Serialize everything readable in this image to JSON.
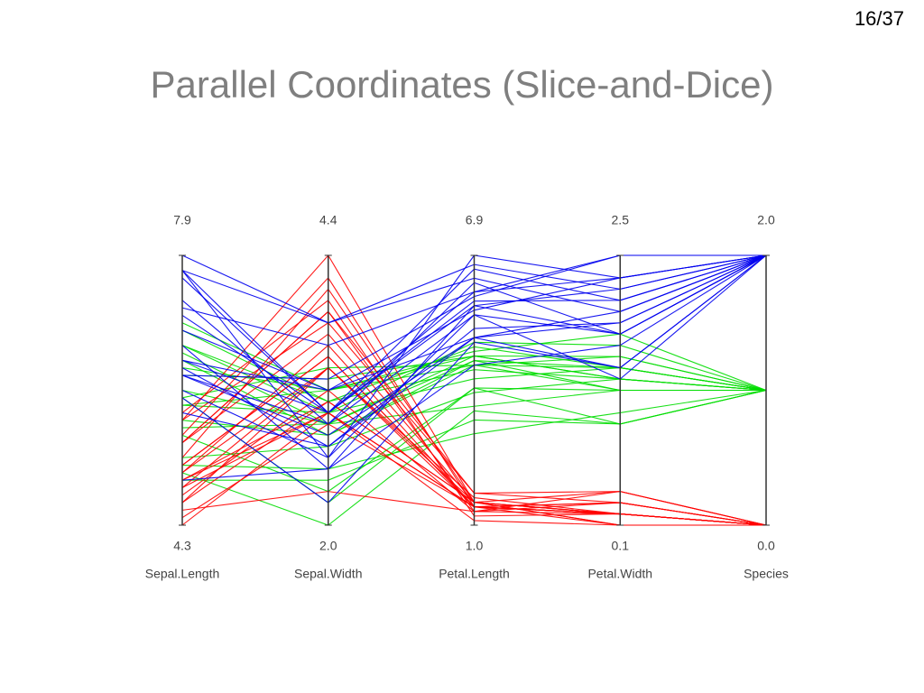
{
  "page": {
    "number": "16/37",
    "title": "Parallel Coordinates (Slice-and-Dice)"
  },
  "chart_data": {
    "type": "parallel",
    "axes": [
      {
        "label": "Sepal.Length",
        "ylim": [
          4.3,
          7.9
        ],
        "yticks": [
          4.3,
          7.9
        ]
      },
      {
        "label": "Sepal.Width",
        "ylim": [
          2,
          4.4
        ],
        "yticks": [
          {
            "value": 2,
            "label": "2.0"
          },
          4.4
        ]
      },
      {
        "label": "Petal.Length",
        "ylim": [
          1,
          6.9
        ],
        "yticks": [
          {
            "value": 1,
            "label": "1.0"
          },
          6.9
        ]
      },
      {
        "label": "Petal.Width",
        "ylim": [
          0.1,
          2.5
        ],
        "yticks": [
          0.1,
          2.5
        ]
      },
      {
        "label": "Species",
        "ylim": [
          0,
          2
        ],
        "yticks": [
          {
            "value": 0,
            "label": "0.0"
          },
          {
            "value": 2,
            "label": "2.0"
          }
        ]
      }
    ],
    "series": [
      {
        "color": "#00dd00",
        "values": [
          [
            7.0,
            3.2,
            4.7,
            1.4,
            1
          ],
          [
            6.4,
            3.2,
            4.5,
            1.5,
            1
          ],
          [
            6.9,
            3.1,
            4.9,
            1.5,
            1
          ],
          [
            5.5,
            2.3,
            4.0,
            1.3,
            1
          ],
          [
            6.5,
            2.8,
            4.6,
            1.5,
            1
          ],
          [
            5.7,
            2.8,
            4.5,
            1.3,
            1
          ],
          [
            6.3,
            3.3,
            4.7,
            1.6,
            1
          ],
          [
            4.9,
            2.4,
            3.3,
            1.0,
            1
          ],
          [
            6.6,
            2.9,
            4.6,
            1.3,
            1
          ],
          [
            5.2,
            2.7,
            3.9,
            1.4,
            1
          ],
          [
            5.0,
            2.0,
            3.5,
            1.0,
            1
          ],
          [
            5.9,
            3.0,
            4.2,
            1.5,
            1
          ],
          [
            6.0,
            2.2,
            4.0,
            1.0,
            1
          ],
          [
            6.1,
            2.9,
            4.7,
            1.4,
            1
          ],
          [
            5.6,
            2.9,
            3.6,
            1.3,
            1
          ],
          [
            6.7,
            3.1,
            4.4,
            1.4,
            1
          ],
          [
            5.9,
            3.2,
            4.8,
            1.8,
            1
          ],
          [
            6.7,
            3.0,
            5.0,
            1.7,
            1
          ],
          [
            5.1,
            2.5,
            3.0,
            1.1,
            1
          ],
          [
            6.0,
            3.4,
            4.5,
            1.6,
            1
          ]
        ]
      },
      {
        "color": "#ff0000",
        "values": [
          [
            5.1,
            3.5,
            1.4,
            0.2,
            0
          ],
          [
            4.9,
            3.0,
            1.4,
            0.2,
            0
          ],
          [
            4.7,
            3.2,
            1.3,
            0.2,
            0
          ],
          [
            4.6,
            3.1,
            1.5,
            0.2,
            0
          ],
          [
            5.0,
            3.6,
            1.4,
            0.2,
            0
          ],
          [
            5.4,
            3.9,
            1.7,
            0.4,
            0
          ],
          [
            4.6,
            3.4,
            1.4,
            0.3,
            0
          ],
          [
            5.0,
            3.4,
            1.5,
            0.2,
            0
          ],
          [
            4.4,
            2.9,
            1.4,
            0.2,
            0
          ],
          [
            4.9,
            3.1,
            1.5,
            0.1,
            0
          ],
          [
            5.4,
            3.7,
            1.5,
            0.2,
            0
          ],
          [
            4.8,
            3.4,
            1.6,
            0.2,
            0
          ],
          [
            4.8,
            3.0,
            1.4,
            0.1,
            0
          ],
          [
            4.3,
            3.0,
            1.1,
            0.1,
            0
          ],
          [
            5.8,
            4.0,
            1.2,
            0.2,
            0
          ],
          [
            5.7,
            4.4,
            1.5,
            0.4,
            0
          ],
          [
            5.4,
            3.9,
            1.3,
            0.4,
            0
          ],
          [
            5.1,
            3.5,
            1.4,
            0.3,
            0
          ],
          [
            5.7,
            3.8,
            1.7,
            0.3,
            0
          ],
          [
            4.5,
            2.3,
            1.3,
            0.3,
            0
          ],
          [
            5.2,
            4.1,
            1.5,
            0.1,
            0
          ],
          [
            5.5,
            4.2,
            1.4,
            0.2,
            0
          ]
        ]
      },
      {
        "color": "#0000ee",
        "values": [
          [
            6.3,
            3.3,
            6.0,
            2.5,
            2
          ],
          [
            5.8,
            2.7,
            5.1,
            1.9,
            2
          ],
          [
            7.1,
            3.0,
            5.9,
            2.1,
            2
          ],
          [
            6.3,
            2.9,
            5.6,
            1.8,
            2
          ],
          [
            6.5,
            3.0,
            5.8,
            2.2,
            2
          ],
          [
            7.6,
            3.0,
            6.6,
            2.1,
            2
          ],
          [
            4.9,
            2.5,
            4.5,
            1.7,
            2
          ],
          [
            7.3,
            2.9,
            6.3,
            1.8,
            2
          ],
          [
            6.7,
            2.5,
            5.8,
            1.8,
            2
          ],
          [
            7.2,
            3.6,
            6.1,
            2.5,
            2
          ],
          [
            6.5,
            3.2,
            5.1,
            2.0,
            2
          ],
          [
            6.4,
            2.7,
            5.3,
            1.9,
            2
          ],
          [
            7.7,
            3.8,
            6.7,
            2.2,
            2
          ],
          [
            7.7,
            2.6,
            6.9,
            2.3,
            2
          ],
          [
            6.0,
            2.2,
            5.0,
            1.5,
            2
          ],
          [
            6.9,
            3.2,
            5.7,
            2.3,
            2
          ],
          [
            7.9,
            3.8,
            6.4,
            2.0,
            2
          ],
          [
            6.3,
            2.8,
            5.1,
            1.5,
            2
          ],
          [
            6.1,
            2.6,
            5.6,
            1.4,
            2
          ],
          [
            7.7,
            3.0,
            6.1,
            2.3,
            2
          ]
        ]
      }
    ]
  }
}
